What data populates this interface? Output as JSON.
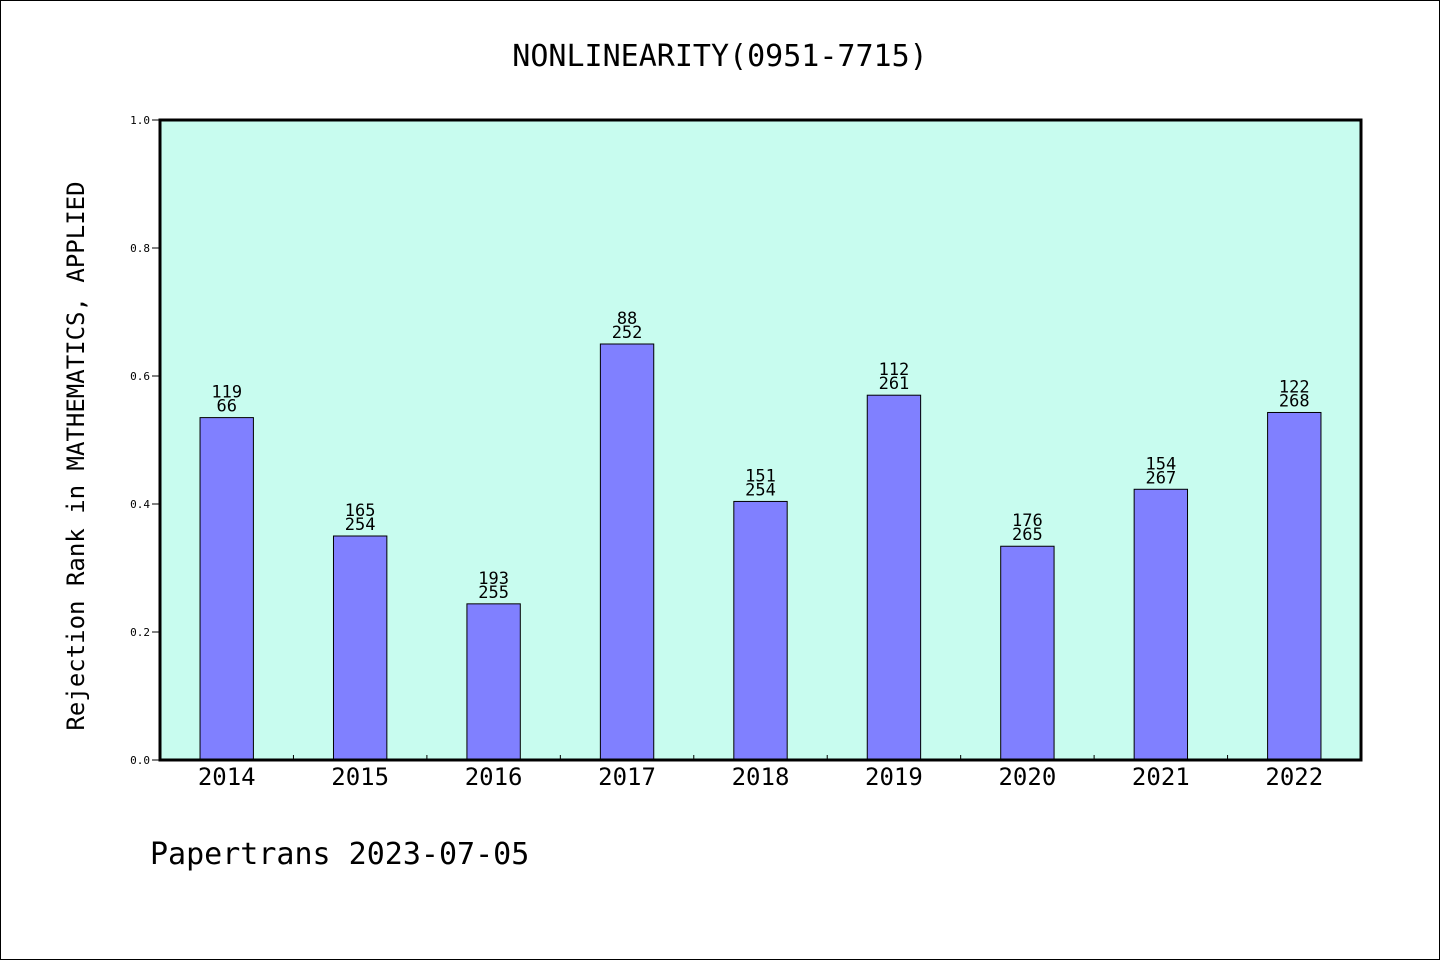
{
  "chart_data": {
    "type": "bar",
    "title": "NONLINEARITY(0951-7715)",
    "xlabel": "",
    "ylabel": "Rejection Rank in MATHEMATICS, APPLIED",
    "ylim": [
      0.0,
      1.0
    ],
    "yticks": [
      "0.0",
      "0.2",
      "0.4",
      "0.6",
      "0.8",
      "1.0"
    ],
    "categories": [
      "2014",
      "2015",
      "2016",
      "2017",
      "2018",
      "2019",
      "2020",
      "2021",
      "2022"
    ],
    "values": [
      0.535,
      0.35,
      0.244,
      0.65,
      0.404,
      0.57,
      0.334,
      0.423,
      0.543
    ],
    "labels_top": [
      "119",
      "165",
      "193",
      "88",
      "151",
      "112",
      "176",
      "154",
      "122"
    ],
    "labels_bottom": [
      "66",
      "254",
      "255",
      "252",
      "254",
      "261",
      "265",
      "267",
      "268"
    ],
    "grid": false,
    "colors": {
      "bar": "#8080ff",
      "plot_background": "#c8fcef",
      "bar_edge": "#000000"
    }
  },
  "footer": "Papertrans 2023-07-05"
}
